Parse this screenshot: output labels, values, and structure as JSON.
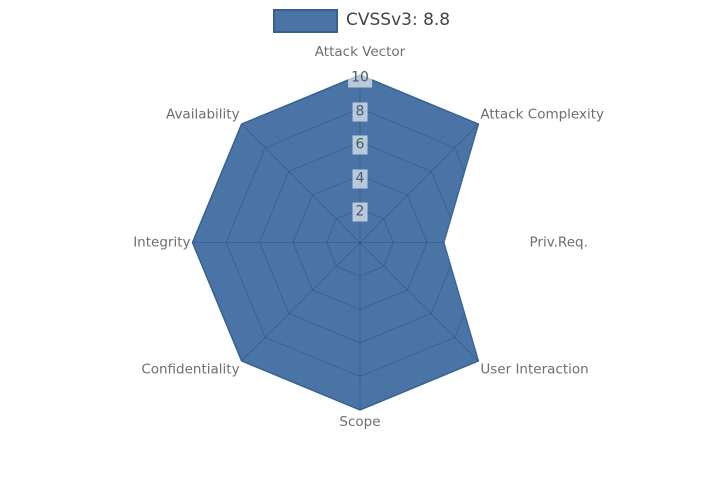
{
  "legend": {
    "label": "CVSSv3: 8.8",
    "swatch_fill": "#4a73a6",
    "swatch_border": "#3a5f8c"
  },
  "chart_data": {
    "type": "radar",
    "title": "",
    "categories": [
      "Attack Vector",
      "Attack Complexity",
      "Priv.Req.",
      "User Interaction",
      "Scope",
      "Confidentiality",
      "Integrity",
      "Availability"
    ],
    "series": [
      {
        "name": "CVSSv3: 8.8",
        "values": [
          10,
          10,
          5,
          10,
          10,
          10,
          10,
          10
        ]
      }
    ],
    "rlim": [
      0,
      10
    ],
    "rticks": [
      2,
      4,
      6,
      8,
      10
    ],
    "grid": "on",
    "legend_position": "top-center",
    "start_axis": "top",
    "direction": "clockwise",
    "fill_color": "#4a73a6",
    "stroke_color": "#3d6899",
    "grid_color": "#1f3a57",
    "grid_opacity": 0.28,
    "axis_label_color": "#6e6e6e",
    "tick_label_color": "#4c5866",
    "tick_box_color": "rgba(255,255,255,0.62)",
    "legend_text_color": "#444444",
    "background_color": "#ffffff"
  }
}
